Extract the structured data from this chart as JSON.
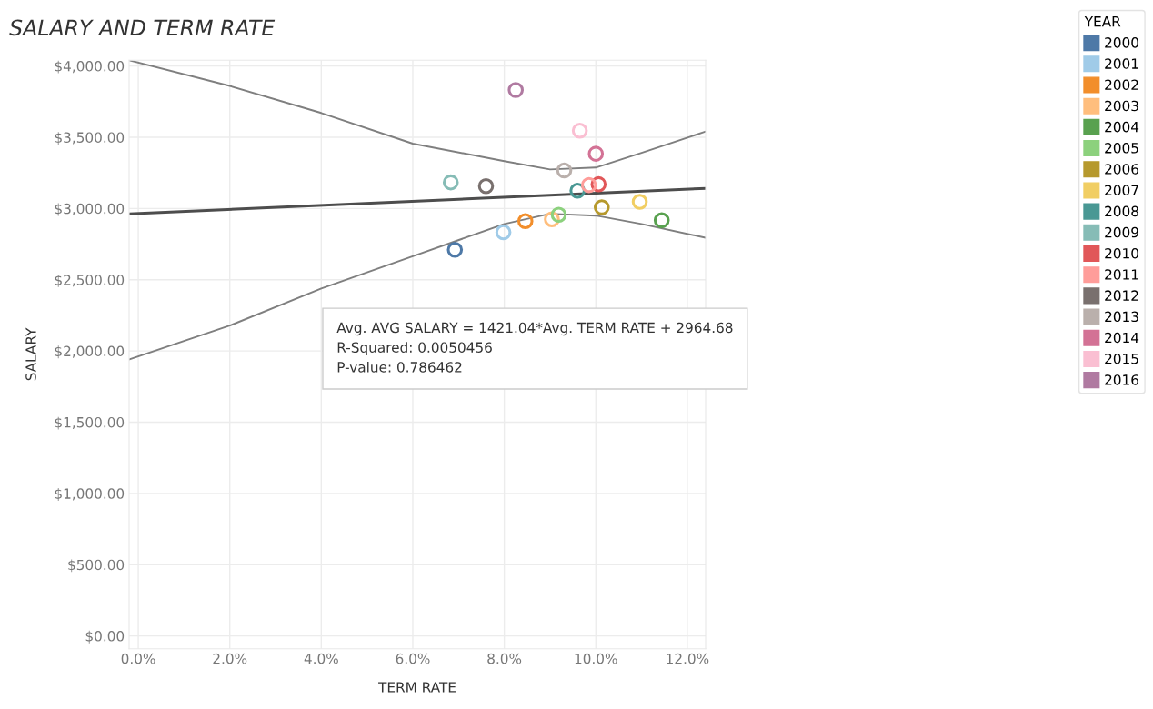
{
  "chart_data": {
    "type": "scatter",
    "title": "SALARY AND TERM RATE",
    "xlabel": "TERM RATE",
    "ylabel": "SALARY",
    "legend_title": "YEAR",
    "legend": "right",
    "marker": "circle",
    "grid": true,
    "xlim": [
      -0.002,
      0.124
    ],
    "ylim": [
      -90,
      4040
    ],
    "xticks": [
      {
        "value": 0,
        "label": "0.0%"
      },
      {
        "value": 0.02,
        "label": "2.0%"
      },
      {
        "value": 0.04,
        "label": "4.0%"
      },
      {
        "value": 0.06,
        "label": "6.0%"
      },
      {
        "value": 0.08,
        "label": "8.0%"
      },
      {
        "value": 0.1,
        "label": "10.0%"
      },
      {
        "value": 0.12,
        "label": "12.0%"
      }
    ],
    "yticks": [
      {
        "value": 0,
        "label": "$0.00"
      },
      {
        "value": 500,
        "label": "$500.00"
      },
      {
        "value": 1000,
        "label": "$1,000.00"
      },
      {
        "value": 1500,
        "label": "$1,500.00"
      },
      {
        "value": 2000,
        "label": "$2,000.00"
      },
      {
        "value": 2500,
        "label": "$2,500.00"
      },
      {
        "value": 3000,
        "label": "$3,000.00"
      },
      {
        "value": 3500,
        "label": "$3,500.00"
      },
      {
        "value": 4000,
        "label": "$4,000.00"
      }
    ],
    "annotations": [
      "Avg. AVG SALARY = 1421.04*Avg. TERM RATE + 2964.68\nR-Squared: 0.0050456\nP-value: 0.786462"
    ],
    "series": [
      {
        "name": "2000",
        "color": "#4e79a7",
        "x": [
          0.0692
        ],
        "values": [
          2710
        ]
      },
      {
        "name": "2001",
        "color": "#a0cbe8",
        "x": [
          0.0798
        ],
        "values": [
          2833
        ]
      },
      {
        "name": "2002",
        "color": "#f28e2b",
        "x": [
          0.0846
        ],
        "values": [
          2911
        ]
      },
      {
        "name": "2003",
        "color": "#ffbe7d",
        "x": [
          0.0904
        ],
        "values": [
          2924
        ]
      },
      {
        "name": "2004",
        "color": "#59a14f",
        "x": [
          0.1144
        ],
        "values": [
          2917
        ]
      },
      {
        "name": "2005",
        "color": "#8cd17d",
        "x": [
          0.0919
        ],
        "values": [
          2956
        ]
      },
      {
        "name": "2006",
        "color": "#b6992d",
        "x": [
          0.1013
        ],
        "values": [
          3008
        ]
      },
      {
        "name": "2007",
        "color": "#f1ce63",
        "x": [
          0.1096
        ],
        "values": [
          3047
        ]
      },
      {
        "name": "2008",
        "color": "#499894",
        "x": [
          0.096
        ],
        "values": [
          3125
        ]
      },
      {
        "name": "2009",
        "color": "#86bcb6",
        "x": [
          0.0683
        ],
        "values": [
          3183
        ]
      },
      {
        "name": "2010",
        "color": "#e15759",
        "x": [
          0.1006
        ],
        "values": [
          3170
        ]
      },
      {
        "name": "2011",
        "color": "#ff9d9a",
        "x": [
          0.0985
        ],
        "values": [
          3164
        ]
      },
      {
        "name": "2012",
        "color": "#79706e",
        "x": [
          0.076
        ],
        "values": [
          3157
        ]
      },
      {
        "name": "2013",
        "color": "#bab0ac",
        "x": [
          0.0931
        ],
        "values": [
          3267
        ]
      },
      {
        "name": "2014",
        "color": "#d37295",
        "x": [
          0.1
        ],
        "values": [
          3384
        ]
      },
      {
        "name": "2015",
        "color": "#fabfd2",
        "x": [
          0.0965
        ],
        "values": [
          3546
        ]
      },
      {
        "name": "2016",
        "color": "#b07aa1",
        "x": [
          0.0825
        ],
        "values": [
          3831
        ]
      },
      {
        "type": "line",
        "marker": "none",
        "color": "#4d4d4d",
        "x": [
          -0.002,
          0.124
        ],
        "values": [
          2962,
          3141
        ]
      },
      {
        "type": "line",
        "marker": "none",
        "color": "#7f7f7f",
        "x": [
          -0.002,
          0.02,
          0.04,
          0.06,
          0.08,
          0.09,
          0.1,
          0.11,
          0.124
        ],
        "values": [
          4040,
          3860,
          3670,
          3455,
          3332,
          3274,
          3287,
          3390,
          3540
        ]
      },
      {
        "type": "line",
        "marker": "none",
        "color": "#7f7f7f",
        "x": [
          -0.002,
          0.02,
          0.04,
          0.06,
          0.08,
          0.09,
          0.1,
          0.11,
          0.124
        ],
        "values": [
          1940,
          2178,
          2438,
          2665,
          2891,
          2963,
          2950,
          2891,
          2794
        ]
      }
    ]
  }
}
